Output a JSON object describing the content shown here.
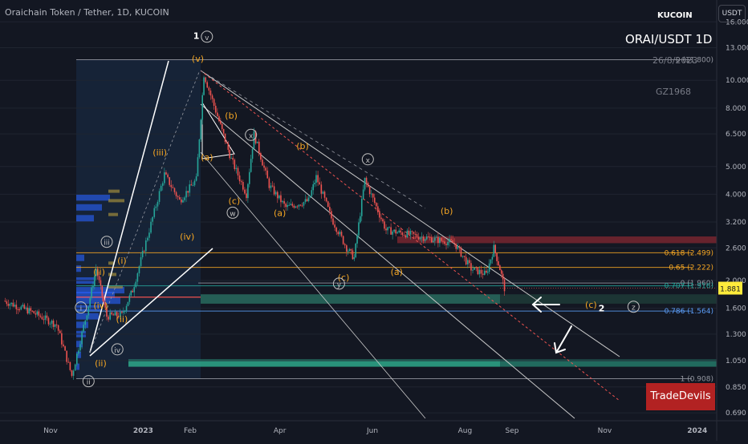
{
  "header": {
    "title": "Oraichain Token / Tether, 1D, KUCOIN",
    "currency_button": "USDT"
  },
  "watermark": {
    "exchange": "KUCOIN",
    "symbol": "ORAI/USDT 1D",
    "date": "26/8/2023",
    "author": "GZ1968"
  },
  "brand": "TradeDevils",
  "chart_data": {
    "type": "candlestick",
    "scale": "log",
    "y_ticks": [
      "16.000",
      "13.000",
      "10.000",
      "8.000",
      "6.500",
      "5.000",
      "4.000",
      "3.200",
      "2.600",
      "2.000",
      "1.600",
      "1.300",
      "1.050",
      "0.850",
      "0.690"
    ],
    "x_ticks": [
      "Nov",
      "2023",
      "Feb",
      "Apr",
      "Jun",
      "Aug",
      "Sep",
      "Nov",
      "2024"
    ],
    "last_price": "1.881",
    "price_path": [
      {
        "date": "2022-10-01",
        "close": 1.7
      },
      {
        "date": "2022-10-20",
        "close": 1.55
      },
      {
        "date": "2022-11-05",
        "close": 1.4
      },
      {
        "date": "2022-11-15",
        "close": 0.93
      },
      {
        "date": "2022-11-25",
        "close": 1.55
      },
      {
        "date": "2022-12-01",
        "close": 2.2
      },
      {
        "date": "2022-12-08",
        "close": 1.5
      },
      {
        "date": "2022-12-18",
        "close": 1.52
      },
      {
        "date": "2022-12-25",
        "close": 1.85
      },
      {
        "date": "2023-01-05",
        "close": 3.0
      },
      {
        "date": "2023-01-15",
        "close": 4.7
      },
      {
        "date": "2023-01-25",
        "close": 3.8
      },
      {
        "date": "2023-02-05",
        "close": 4.5
      },
      {
        "date": "2023-02-10",
        "close": 10.5
      },
      {
        "date": "2023-02-20",
        "close": 7.2
      },
      {
        "date": "2023-02-28",
        "close": 5.3
      },
      {
        "date": "2023-03-10",
        "close": 4.0
      },
      {
        "date": "2023-03-15",
        "close": 6.5
      },
      {
        "date": "2023-03-25",
        "close": 4.3
      },
      {
        "date": "2023-04-05",
        "close": 3.6
      },
      {
        "date": "2023-04-20",
        "close": 3.8
      },
      {
        "date": "2023-04-25",
        "close": 4.6
      },
      {
        "date": "2023-05-05",
        "close": 3.3
      },
      {
        "date": "2023-05-15",
        "close": 2.6
      },
      {
        "date": "2023-05-20",
        "close": 2.4
      },
      {
        "date": "2023-05-27",
        "close": 4.5
      },
      {
        "date": "2023-06-10",
        "close": 3.0
      },
      {
        "date": "2023-06-25",
        "close": 2.9
      },
      {
        "date": "2023-07-10",
        "close": 2.8
      },
      {
        "date": "2023-07-25",
        "close": 2.7
      },
      {
        "date": "2023-08-05",
        "close": 2.2
      },
      {
        "date": "2023-08-15",
        "close": 2.1
      },
      {
        "date": "2023-08-20",
        "close": 2.6
      },
      {
        "date": "2023-08-24",
        "close": 2.2
      },
      {
        "date": "2023-08-27",
        "close": 1.88
      }
    ],
    "fib_levels": [
      {
        "label": "0 (11.800)",
        "value": 11.8,
        "color": "#9598a1"
      },
      {
        "label": "0.618 (2.499)",
        "value": 2.499,
        "color": "#f5a623"
      },
      {
        "label": "0.65 (2.222)",
        "value": 2.222,
        "color": "#f5a623"
      },
      {
        "label": "0 (1.960)",
        "value": 1.96,
        "color": "#9598a1"
      },
      {
        "label": "0.707 (1.916)",
        "value": 1.916,
        "color": "#26a69a"
      },
      {
        "label": "0.786 (1.564)",
        "value": 1.564,
        "color": "#5b9cf6"
      },
      {
        "label": "1 (0.908)",
        "value": 0.908,
        "color": "#9598a1"
      }
    ],
    "wave_labels": [
      {
        "text": "1",
        "date": "2023-02-05",
        "price": 14.3,
        "color": "#ffffff",
        "style": "plain"
      },
      {
        "text": "v",
        "date": "2023-02-12",
        "price": 14.2,
        "color": "#c0c0c0",
        "style": "circle"
      },
      {
        "text": "(v)",
        "date": "2023-02-06",
        "price": 11.9,
        "color": "#f5a623",
        "style": "plain"
      },
      {
        "text": "(iii)",
        "date": "2023-01-12",
        "price": 5.6,
        "color": "#f5a623",
        "style": "plain"
      },
      {
        "text": "(iv)",
        "date": "2023-01-30",
        "price": 2.85,
        "color": "#f5a623",
        "style": "plain"
      },
      {
        "text": "(i)",
        "date": "2022-12-18",
        "price": 2.35,
        "color": "#f5a623",
        "style": "plain"
      },
      {
        "text": "iii",
        "date": "2022-12-08",
        "price": 2.73,
        "color": "#c0c0c0",
        "style": "circle"
      },
      {
        "text": "(ii)",
        "date": "2022-12-18",
        "price": 1.47,
        "color": "#f5a623",
        "style": "plain"
      },
      {
        "text": "(ii)",
        "date": "2022-12-03",
        "price": 2.15,
        "color": "#f5a623",
        "style": "plain"
      },
      {
        "text": "(iv)",
        "date": "2022-12-04",
        "price": 1.64,
        "color": "#f5a623",
        "style": "plain"
      },
      {
        "text": "i",
        "date": "2022-11-21",
        "price": 1.61,
        "color": "#c0c0c0",
        "style": "circle"
      },
      {
        "text": "iv",
        "date": "2022-12-15",
        "price": 1.15,
        "color": "#c0c0c0",
        "style": "circle"
      },
      {
        "text": "ii",
        "date": "2022-11-26",
        "price": 0.89,
        "color": "#c0c0c0",
        "style": "circle"
      },
      {
        "text": "(ii)",
        "date": "2022-12-04",
        "price": 1.03,
        "color": "#f5a623",
        "style": "plain"
      },
      {
        "text": "(a)",
        "date": "2023-02-12",
        "price": 5.4,
        "color": "#f5a623",
        "style": "plain"
      },
      {
        "text": "(b)",
        "date": "2023-02-28",
        "price": 7.55,
        "color": "#f5a623",
        "style": "plain"
      },
      {
        "text": "x",
        "date": "2023-03-13",
        "price": 6.45,
        "color": "#c0c0c0",
        "style": "circle"
      },
      {
        "text": "(c)",
        "date": "2023-03-02",
        "price": 3.8,
        "color": "#f5a623",
        "style": "plain"
      },
      {
        "text": "w",
        "date": "2023-03-01",
        "price": 3.45,
        "color": "#c0c0c0",
        "style": "circle"
      },
      {
        "text": "(a)",
        "date": "2023-04-01",
        "price": 3.45,
        "color": "#f5a623",
        "style": "plain"
      },
      {
        "text": "(b)",
        "date": "2023-04-16",
        "price": 5.9,
        "color": "#f5a623",
        "style": "plain"
      },
      {
        "text": "x",
        "date": "2023-05-29",
        "price": 5.3,
        "color": "#c0c0c0",
        "style": "circle"
      },
      {
        "text": "(c)",
        "date": "2023-05-13",
        "price": 2.05,
        "color": "#f5a623",
        "style": "plain"
      },
      {
        "text": "y",
        "date": "2023-05-10",
        "price": 1.95,
        "color": "#c0c0c0",
        "style": "circle"
      },
      {
        "text": "(a)",
        "date": "2023-06-17",
        "price": 2.15,
        "color": "#f5a623",
        "style": "plain"
      },
      {
        "text": "(b)",
        "date": "2023-07-20",
        "price": 3.5,
        "color": "#f5a623",
        "style": "plain"
      },
      {
        "text": "(c)",
        "date": "2023-10-23",
        "price": 1.65,
        "color": "#f5a623",
        "style": "plain"
      },
      {
        "text": "2",
        "date": "2023-10-30",
        "price": 1.6,
        "color": "#ffffff",
        "style": "plain"
      },
      {
        "text": "z",
        "date": "2023-11-20",
        "price": 1.62,
        "color": "#c0c0c0",
        "style": "circle"
      }
    ]
  }
}
